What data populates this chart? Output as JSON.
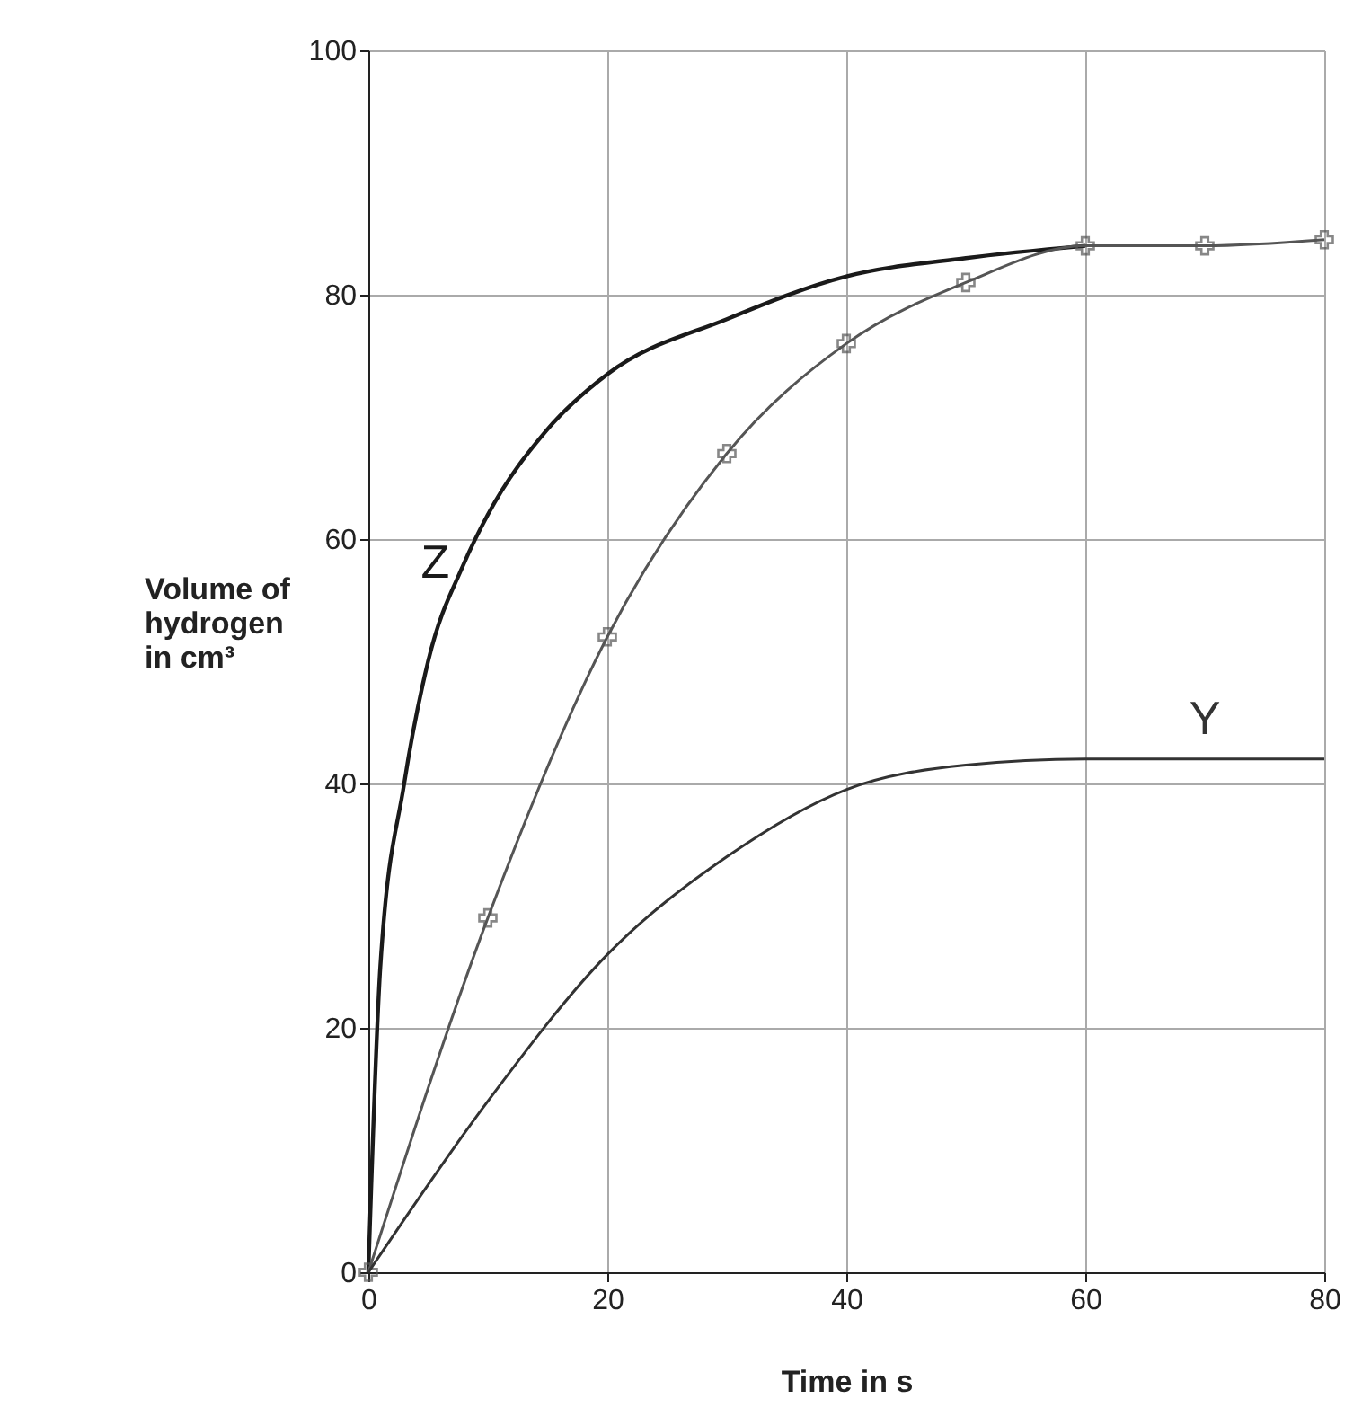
{
  "chart_data": {
    "type": "line",
    "xlabel": "Time in s",
    "ylabel": "Volume of\nhydrogen\nin cm³",
    "xlim": [
      0,
      80
    ],
    "ylim": [
      0,
      100
    ],
    "xticks": [
      0,
      20,
      40,
      60,
      80
    ],
    "yticks": [
      0,
      20,
      40,
      60,
      80,
      100
    ],
    "grid": true,
    "series": [
      {
        "name": "Z",
        "color": "#1a1a1a",
        "x": [
          0,
          1,
          3,
          5,
          8,
          10,
          15,
          20,
          30,
          40,
          50,
          60
        ],
        "values": [
          0,
          25,
          40,
          50,
          58,
          62,
          69,
          73.5,
          78,
          81.5,
          83,
          84
        ],
        "marker": "none"
      },
      {
        "color": "#555555",
        "x": [
          0,
          10,
          20,
          30,
          40,
          50,
          60,
          70,
          80
        ],
        "values": [
          0,
          29,
          52,
          67,
          76,
          81,
          84,
          84,
          84.5
        ],
        "marker": "cross"
      },
      {
        "name": "Y",
        "color": "#333333",
        "x": [
          0,
          10,
          20,
          30,
          40,
          50,
          60,
          70,
          80
        ],
        "values": [
          0,
          14,
          26,
          34,
          39.5,
          41.5,
          42,
          42,
          42
        ],
        "marker": "none"
      }
    ]
  }
}
